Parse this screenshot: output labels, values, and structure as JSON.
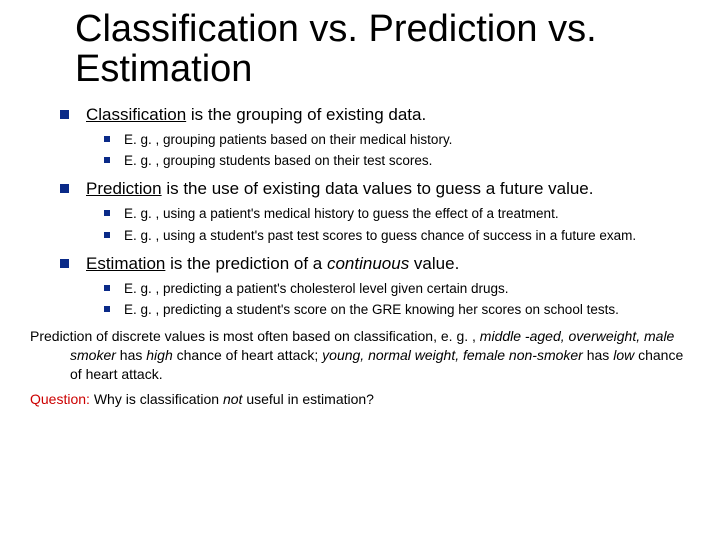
{
  "colors": {
    "bullet": "#0a2a88",
    "text": "#000000",
    "background": "#ffffff",
    "red": "#cc0000"
  },
  "fonts": {
    "title_family": "Arial",
    "body_family": "Verdana",
    "title_size_pt": 38,
    "level1_size_pt": 17,
    "level2_size_pt": 13.5,
    "bottom_size_pt": 14
  },
  "title": "Classification vs. Prediction vs. Estimation",
  "points": [
    {
      "lead_u": "Classification",
      "rest": " is the grouping of existing data.",
      "subs": [
        "E. g. , grouping patients based on their medical history.",
        "E. g. , grouping students based on their test scores."
      ]
    },
    {
      "lead_u": "Prediction",
      "rest": " is the use of existing data values to guess a future value.",
      "subs": [
        "E. g. , using a patient's medical history to guess the effect of a treatment.",
        "E. g. , using a student's past test scores to guess chance of success in a future exam."
      ]
    },
    {
      "lead_u": "Estimation",
      "rest_pre": " is the prediction of a ",
      "rest_em": "continuous",
      "rest_post": " value.",
      "subs": [
        "E. g. , predicting a patient's cholesterol level given certain drugs.",
        "E. g. , predicting a student's score on the GRE knowing her scores on school tests."
      ]
    }
  ],
  "bottom": {
    "p1_a": "Prediction of discrete values is most often based on classification, e. g. , ",
    "p1_em1": "middle -aged, overweight, male smoker",
    "p1_b": " has ",
    "p1_em2": "high",
    "p1_c": " chance of heart attack; ",
    "p1_em3": "young, normal weight, female non-smoker",
    "p1_d": " has ",
    "p1_em4": "low",
    "p1_e": " chance of heart attack.",
    "q_label": "Question:",
    "q_a": " Why is classification ",
    "q_em": "not",
    "q_b": " useful in estimation?"
  }
}
